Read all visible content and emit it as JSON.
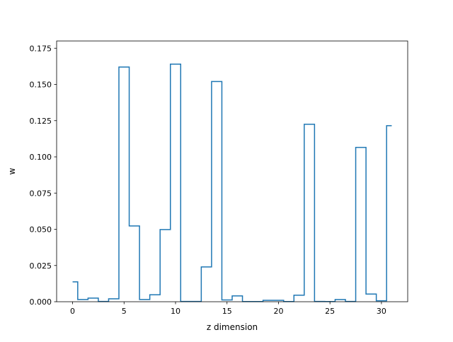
{
  "chart_data": {
    "type": "line",
    "drawstyle": "steps-mid",
    "xlabel": "z dimension",
    "ylabel": "w",
    "xlim": [
      -1.55,
      32.55
    ],
    "ylim": [
      0,
      0.18
    ],
    "xticks": [
      0,
      5,
      10,
      15,
      20,
      25,
      30
    ],
    "xtick_labels": [
      "0",
      "5",
      "10",
      "15",
      "20",
      "25",
      "30"
    ],
    "yticks": [
      0,
      0.025,
      0.05,
      0.075,
      0.1,
      0.125,
      0.15,
      0.175
    ],
    "ytick_labels": [
      "0.000",
      "0.025",
      "0.050",
      "0.075",
      "0.100",
      "0.125",
      "0.150",
      "0.175"
    ],
    "grid": false,
    "colors": {
      "line": "#1f77b4",
      "axes": "#000000",
      "background": "#ffffff"
    },
    "series": [
      {
        "x": [
          0,
          1,
          2,
          3,
          4,
          5,
          6,
          7,
          8,
          9,
          10,
          11,
          12,
          13,
          14,
          15,
          16,
          17,
          18,
          19,
          20,
          21,
          22,
          23,
          24,
          25,
          26,
          27,
          28,
          29,
          30,
          31
        ],
        "values": [
          0.0137,
          0.0015,
          0.0025,
          0.0002,
          0.002,
          0.162,
          0.0523,
          0.0015,
          0.0048,
          0.0498,
          0.164,
          0.0002,
          0.0002,
          0.024,
          0.152,
          0.0012,
          0.004,
          0.0001,
          0.0001,
          0.001,
          0.001,
          0.0001,
          0.0045,
          0.1225,
          0.0002,
          0.0001,
          0.0015,
          0.0002,
          0.1065,
          0.0053,
          0.0007,
          0.1215
        ]
      }
    ]
  }
}
